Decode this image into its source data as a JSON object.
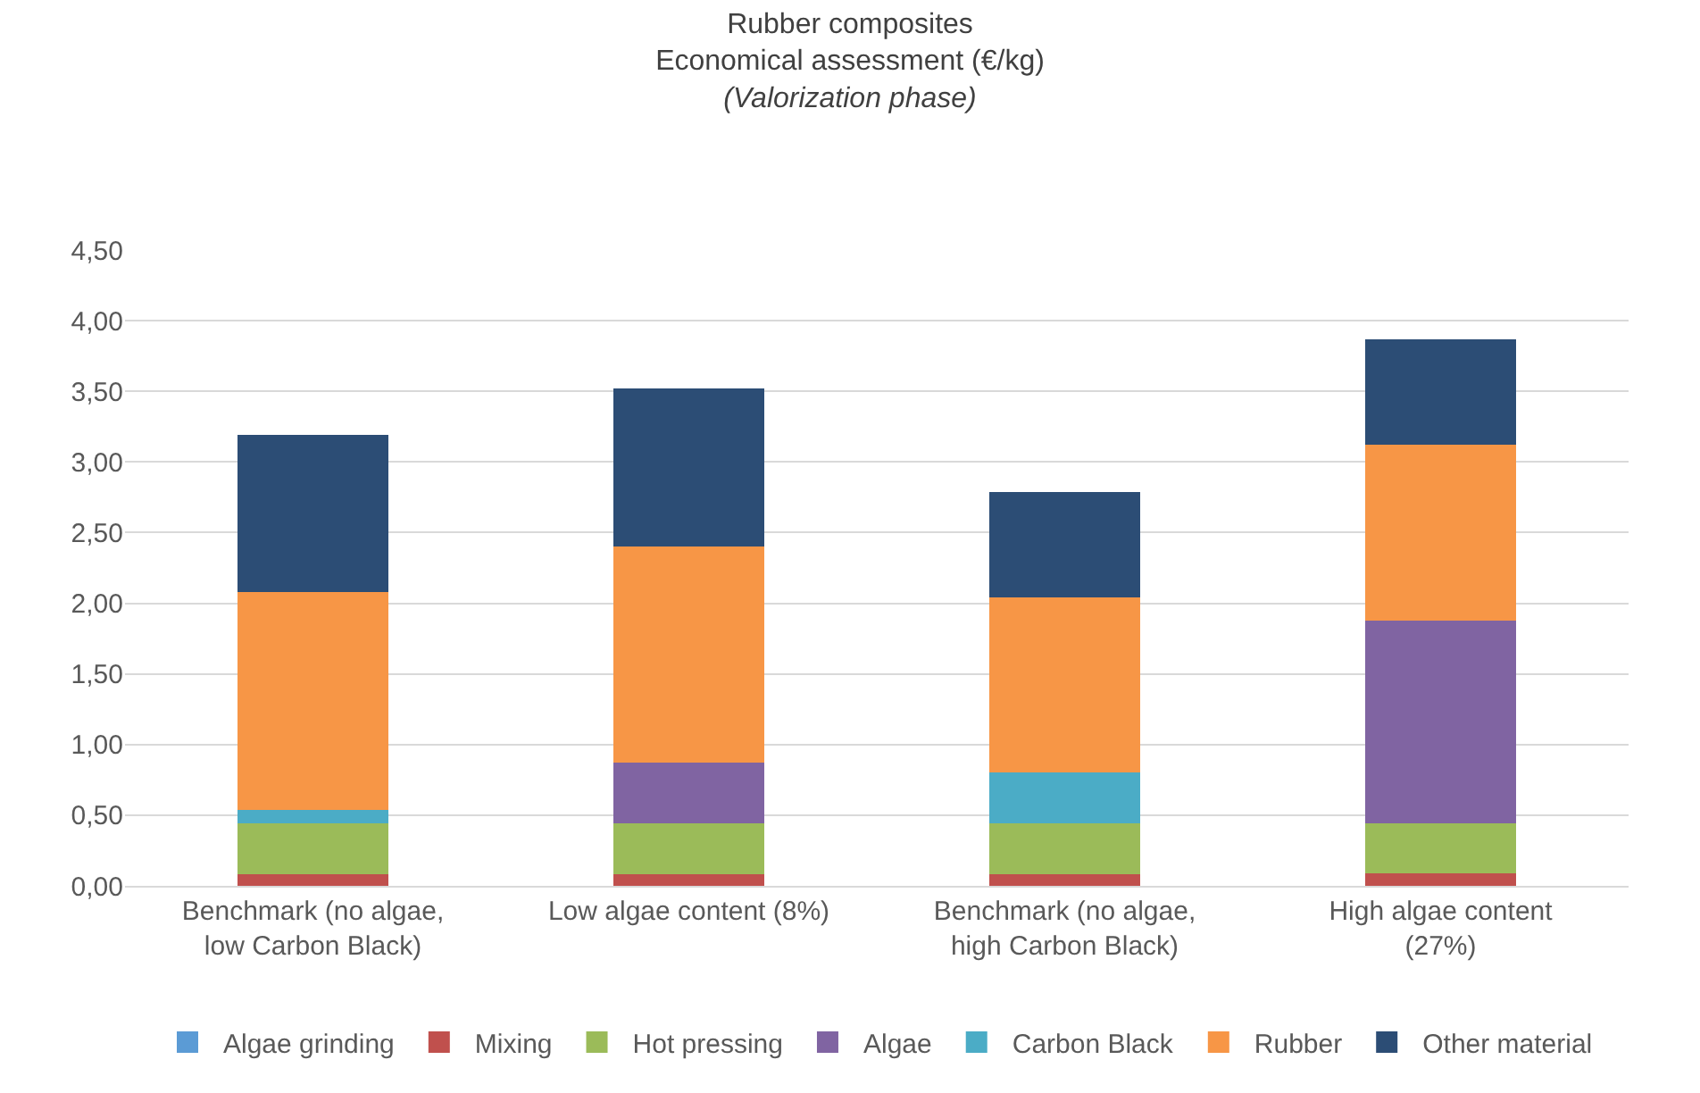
{
  "chart_data": {
    "type": "bar",
    "stacked": true,
    "title": "Rubber composites\nEconomical assessment (€/kg)",
    "subtitle": "(Valorization phase)",
    "categories": [
      "Benchmark (no algae,\nlow Carbon Black)",
      "Low algae content (8%)",
      "Benchmark (no algae,\nhigh Carbon Black)",
      "High algae content\n(27%)"
    ],
    "series": [
      {
        "name": "Algae grinding",
        "color": "#5b9bd5",
        "values": [
          0,
          0,
          0,
          0
        ]
      },
      {
        "name": "Mixing",
        "color": "#c0504d",
        "values": [
          0.08,
          0.08,
          0.08,
          0.09
        ]
      },
      {
        "name": "Hot pressing",
        "color": "#9bbb59",
        "values": [
          0.36,
          0.36,
          0.36,
          0.35
        ]
      },
      {
        "name": "Algae",
        "color": "#8064a2",
        "values": [
          0,
          0.43,
          0,
          1.44
        ]
      },
      {
        "name": "Carbon Black",
        "color": "#4bacc6",
        "values": [
          0.1,
          0,
          0.36,
          0
        ]
      },
      {
        "name": "Rubber",
        "color": "#f79646",
        "values": [
          1.54,
          1.53,
          1.24,
          1.24
        ]
      },
      {
        "name": "Other material",
        "color": "#2c4d75",
        "values": [
          1.11,
          1.12,
          0.75,
          0.75
        ]
      }
    ],
    "ylim": [
      0,
      4.5
    ],
    "yticks": [
      {
        "value": 0,
        "label": "0,00"
      },
      {
        "value": 0.5,
        "label": "0,50"
      },
      {
        "value": 1,
        "label": "1,00"
      },
      {
        "value": 1.5,
        "label": "1,50"
      },
      {
        "value": 2,
        "label": "2,00"
      },
      {
        "value": 2.5,
        "label": "2,50"
      },
      {
        "value": 3,
        "label": "3,00"
      },
      {
        "value": 3.5,
        "label": "3,50"
      },
      {
        "value": 4,
        "label": "4,00"
      },
      {
        "value": 4.5,
        "label": "4,50"
      }
    ],
    "grid": "y",
    "legend": "bottom"
  }
}
